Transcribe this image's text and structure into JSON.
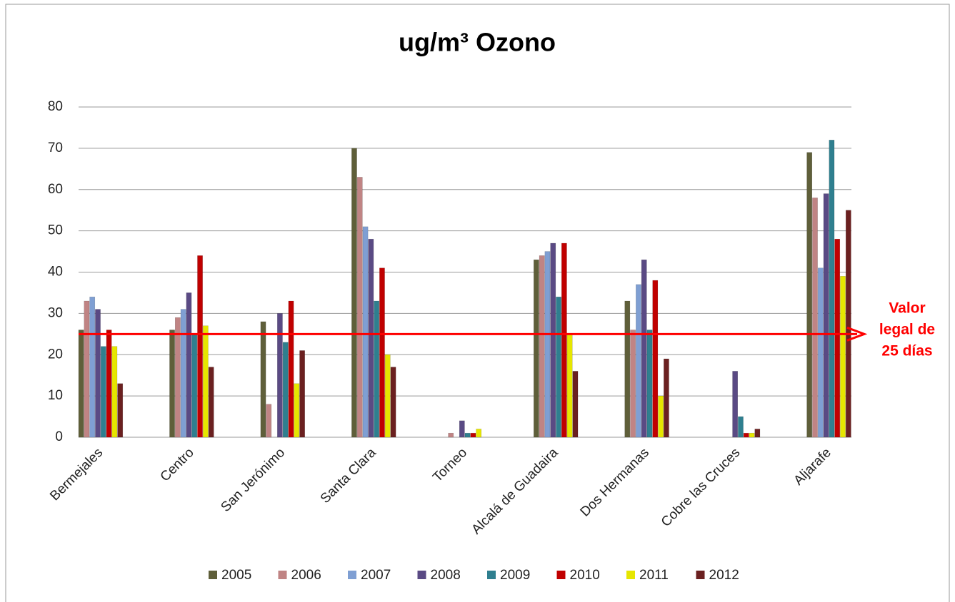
{
  "chart_data": {
    "type": "bar",
    "title": "ug/m³ Ozono",
    "categories": [
      "Bermejales",
      "Centro",
      "San Jerónimo",
      "Santa Clara",
      "Torneo",
      "Alcalá de Guadaira",
      "Dos Hermanas",
      "Cobre las Cruces",
      "Aljarafe"
    ],
    "series": [
      {
        "name": "2005",
        "color": "#5f5f3a",
        "values": [
          26,
          26,
          28,
          70,
          null,
          43,
          33,
          null,
          69
        ]
      },
      {
        "name": "2006",
        "color": "#c08484",
        "values": [
          33,
          29,
          8,
          63,
          1,
          44,
          26,
          null,
          58
        ]
      },
      {
        "name": "2007",
        "color": "#7f9fd3",
        "values": [
          34,
          31,
          null,
          51,
          null,
          45,
          37,
          null,
          41
        ]
      },
      {
        "name": "2008",
        "color": "#5a4a84",
        "values": [
          31,
          35,
          30,
          48,
          4,
          47,
          43,
          16,
          59
        ]
      },
      {
        "name": "2009",
        "color": "#2f7f8f",
        "values": [
          22,
          25,
          23,
          33,
          1,
          34,
          26,
          5,
          72
        ]
      },
      {
        "name": "2010",
        "color": "#c00000",
        "values": [
          26,
          44,
          33,
          41,
          1,
          47,
          38,
          1,
          48
        ]
      },
      {
        "name": "2011",
        "color": "#e6e600",
        "values": [
          22,
          27,
          13,
          20,
          2,
          25,
          10,
          1,
          39
        ]
      },
      {
        "name": "2012",
        "color": "#6b2020",
        "values": [
          13,
          17,
          21,
          17,
          null,
          16,
          19,
          2,
          55
        ]
      }
    ],
    "ylim": [
      0,
      80
    ],
    "yticks": [
      0,
      10,
      20,
      30,
      40,
      50,
      60,
      70,
      80
    ],
    "grid": true,
    "threshold": 25,
    "threshold_color": "#ff0000",
    "annotation": [
      "Valor",
      "legal de",
      "25 días"
    ],
    "legend": "bottom"
  }
}
